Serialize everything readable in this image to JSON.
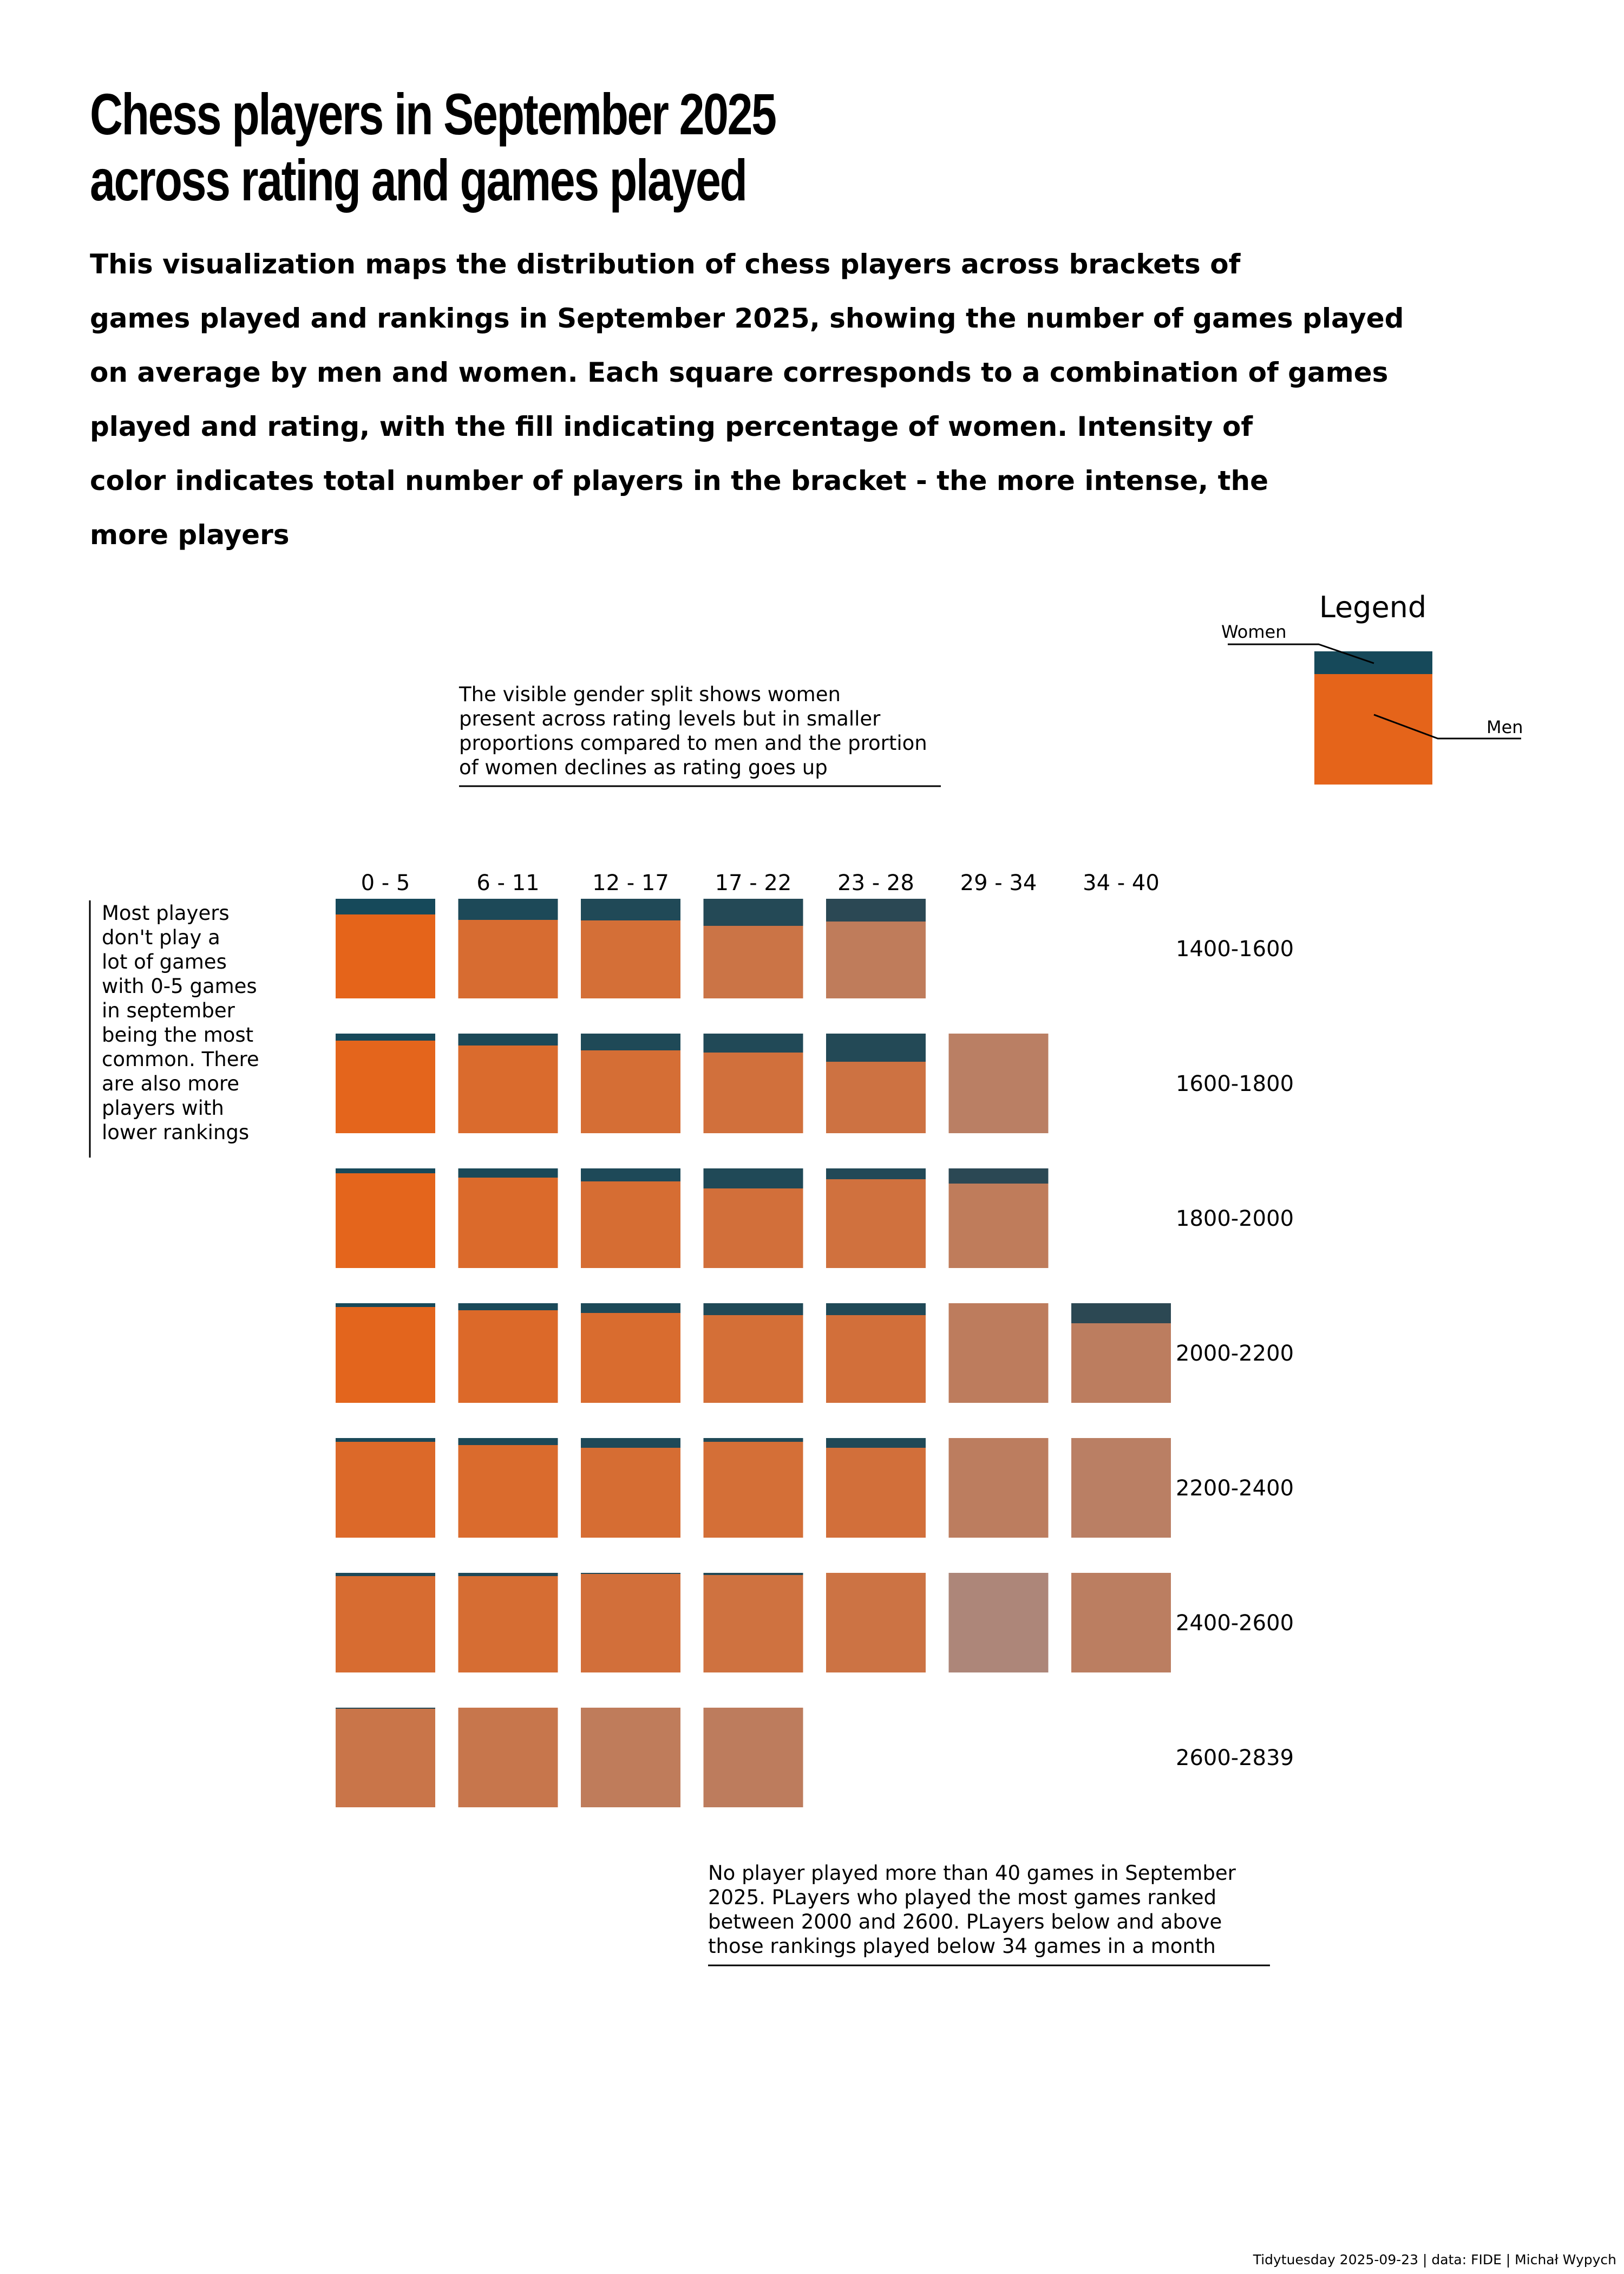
{
  "title": {
    "lines": [
      "Chess players in September 2025",
      "across rating and games played"
    ]
  },
  "subtitle": {
    "lines": [
      "This visualization maps the distribution of chess players across brackets of",
      "games played and rankings in September 2025, showing the number of games played",
      "on average by men and women. Each square corresponds to a combination of games",
      "played and rating, with the fill indicating percentage of women. Intensity of",
      "color indicates total number of players in the bracket - the more intense, the",
      "more players"
    ]
  },
  "annotations": {
    "gender_split": [
      "The visible gender split shows women",
      "present across rating levels but in smaller",
      "proportions compared to men and the prortion",
      "of women declines as rating goes up"
    ],
    "games_max": [
      "No player played more than 40 games in September",
      "2025. PLayers who played the most games ranked",
      "between 2000 and 2600. PLayers below and above",
      "those rankings played below 34 games in a month"
    ],
    "most_players": [
      "Most players",
      "don't play a",
      "lot of games",
      "with 0-5 games",
      "in september",
      "being the most",
      "common. There",
      "are also more",
      "players with",
      "lower rankings"
    ]
  },
  "legend": {
    "title": "Legend",
    "women_label": "Women",
    "men_label": "Men"
  },
  "caption": "Tidytuesday 2025-09-23 | data: FIDE | Michał Wypych",
  "colors": {
    "women": "#16495a",
    "men": "#e5641a",
    "muted": "#a78a83"
  },
  "chart_data": {
    "type": "heatmap",
    "x_categories": [
      "0 - 5",
      "6 - 11",
      "12 - 17",
      "17 - 22",
      "23 - 28",
      "29 - 34",
      "34 - 40"
    ],
    "y_categories": [
      "1400-1600",
      "1600-1800",
      "1800-2000",
      "2000-2200",
      "2200-2400",
      "2400-2600",
      "2600-2839"
    ],
    "cells": [
      {
        "rating": "1400-1600",
        "games": "0 - 5",
        "pct_women": 16,
        "intensity": 1.0
      },
      {
        "rating": "1400-1600",
        "games": "6 - 11",
        "pct_women": 21,
        "intensity": 0.78
      },
      {
        "rating": "1400-1600",
        "games": "12 - 17",
        "pct_women": 22,
        "intensity": 0.72
      },
      {
        "rating": "1400-1600",
        "games": "17 - 22",
        "pct_women": 27,
        "intensity": 0.58
      },
      {
        "rating": "1400-1600",
        "games": "23 - 28",
        "pct_women": 23,
        "intensity": 0.38
      },
      {
        "rating": "1600-1800",
        "games": "0 - 5",
        "pct_women": 7,
        "intensity": 0.98
      },
      {
        "rating": "1600-1800",
        "games": "6 - 11",
        "pct_women": 12,
        "intensity": 0.82
      },
      {
        "rating": "1600-1800",
        "games": "12 - 17",
        "pct_women": 17,
        "intensity": 0.74
      },
      {
        "rating": "1600-1800",
        "games": "17 - 22",
        "pct_women": 19,
        "intensity": 0.68
      },
      {
        "rating": "1600-1800",
        "games": "23 - 28",
        "pct_women": 28,
        "intensity": 0.62
      },
      {
        "rating": "1600-1800",
        "games": "29 - 34",
        "pct_women": 0,
        "intensity": 0.3
      },
      {
        "rating": "1800-2000",
        "games": "0 - 5",
        "pct_women": 5,
        "intensity": 0.98
      },
      {
        "rating": "1800-2000",
        "games": "6 - 11",
        "pct_women": 9,
        "intensity": 0.84
      },
      {
        "rating": "1800-2000",
        "games": "12 - 17",
        "pct_women": 13,
        "intensity": 0.76
      },
      {
        "rating": "1800-2000",
        "games": "17 - 22",
        "pct_women": 20,
        "intensity": 0.7
      },
      {
        "rating": "1800-2000",
        "games": "23 - 28",
        "pct_women": 11,
        "intensity": 0.66
      },
      {
        "rating": "1800-2000",
        "games": "29 - 34",
        "pct_women": 15,
        "intensity": 0.38
      },
      {
        "rating": "2000-2200",
        "games": "0 - 5",
        "pct_women": 4,
        "intensity": 0.97
      },
      {
        "rating": "2000-2200",
        "games": "6 - 11",
        "pct_women": 7,
        "intensity": 0.86
      },
      {
        "rating": "2000-2200",
        "games": "12 - 17",
        "pct_women": 10,
        "intensity": 0.8
      },
      {
        "rating": "2000-2200",
        "games": "17 - 22",
        "pct_women": 12,
        "intensity": 0.72
      },
      {
        "rating": "2000-2200",
        "games": "23 - 28",
        "pct_women": 12,
        "intensity": 0.7
      },
      {
        "rating": "2000-2200",
        "games": "29 - 34",
        "pct_women": 0,
        "intensity": 0.36
      },
      {
        "rating": "2000-2200",
        "games": "34 - 40",
        "pct_women": 20,
        "intensity": 0.34
      },
      {
        "rating": "2200-2400",
        "games": "0 - 5",
        "pct_women": 4,
        "intensity": 0.86
      },
      {
        "rating": "2200-2400",
        "games": "6 - 11",
        "pct_women": 7,
        "intensity": 0.82
      },
      {
        "rating": "2200-2400",
        "games": "12 - 17",
        "pct_women": 10,
        "intensity": 0.76
      },
      {
        "rating": "2200-2400",
        "games": "17 - 22",
        "pct_women": 4,
        "intensity": 0.72
      },
      {
        "rating": "2200-2400",
        "games": "23 - 28",
        "pct_women": 10,
        "intensity": 0.7
      },
      {
        "rating": "2200-2400",
        "games": "29 - 34",
        "pct_women": 0,
        "intensity": 0.34
      },
      {
        "rating": "2200-2400",
        "games": "34 - 40",
        "pct_women": 0,
        "intensity": 0.3
      },
      {
        "rating": "2400-2600",
        "games": "0 - 5",
        "pct_women": 3,
        "intensity": 0.78
      },
      {
        "rating": "2400-2600",
        "games": "6 - 11",
        "pct_women": 3,
        "intensity": 0.76
      },
      {
        "rating": "2400-2600",
        "games": "12 - 17",
        "pct_women": 1,
        "intensity": 0.7
      },
      {
        "rating": "2400-2600",
        "games": "17 - 22",
        "pct_women": 2,
        "intensity": 0.64
      },
      {
        "rating": "2400-2600",
        "games": "23 - 28",
        "pct_women": 0,
        "intensity": 0.6
      },
      {
        "rating": "2400-2600",
        "games": "29 - 34",
        "pct_women": 0,
        "intensity": 0.1
      },
      {
        "rating": "2400-2600",
        "games": "34 - 40",
        "pct_women": 0,
        "intensity": 0.32
      },
      {
        "rating": "2600-2839",
        "games": "0 - 5",
        "pct_women": 1,
        "intensity": 0.55
      },
      {
        "rating": "2600-2839",
        "games": "6 - 11",
        "pct_women": 0,
        "intensity": 0.52
      },
      {
        "rating": "2600-2839",
        "games": "12 - 17",
        "pct_women": 0,
        "intensity": 0.38
      },
      {
        "rating": "2600-2839",
        "games": "17 - 22",
        "pct_women": 0,
        "intensity": 0.36
      }
    ]
  }
}
